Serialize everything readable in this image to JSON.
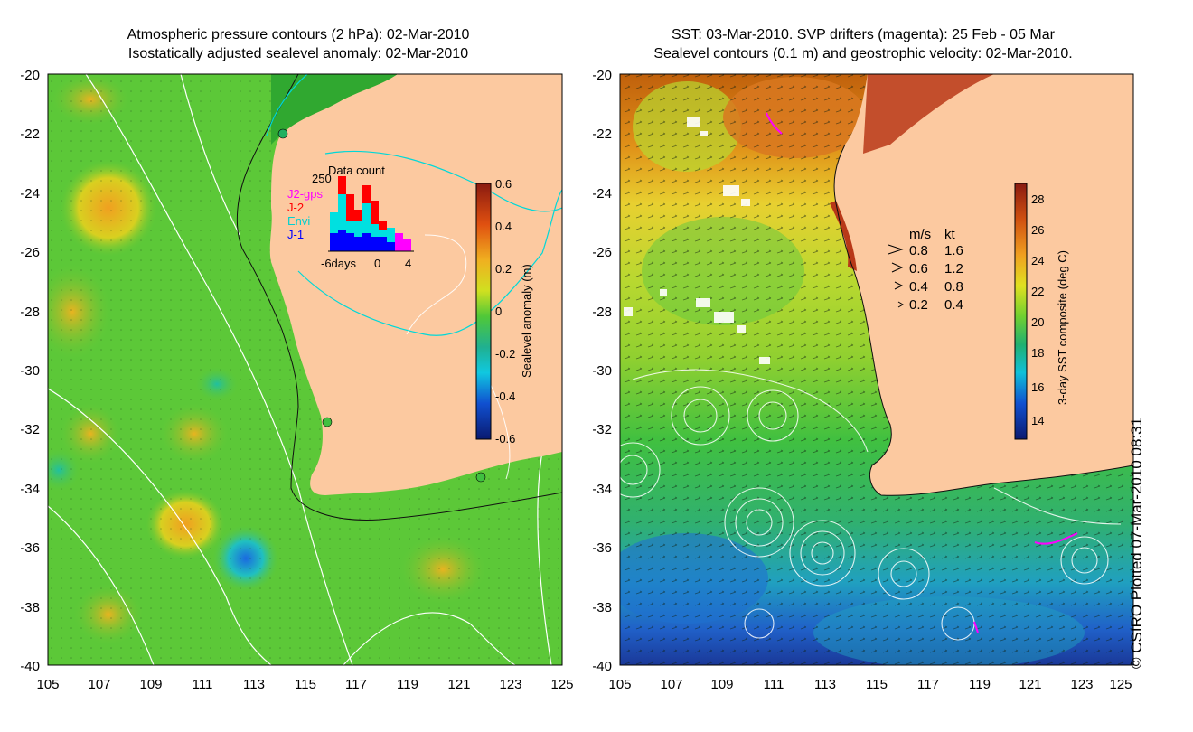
{
  "left_panel": {
    "title_line1": "Atmospheric pressure contours (2 hPa): 02-Mar-2010",
    "title_line2": "Isostatically adjusted sealevel anomaly: 02-Mar-2010",
    "y_ticks": [
      "-20",
      "-22",
      "-24",
      "-26",
      "-28",
      "-30",
      "-32",
      "-34",
      "-36",
      "-38",
      "-40"
    ],
    "x_ticks": [
      "105",
      "107",
      "109",
      "111",
      "113",
      "115",
      "117",
      "119",
      "121",
      "123",
      "125"
    ],
    "colorbar": {
      "label": "Sealevel anomaly (m)",
      "ticks": [
        "0.6",
        "0.4",
        "0.2",
        "0",
        "-0.2",
        "-0.4",
        "-0.6"
      ],
      "range": [
        -0.6,
        0.6
      ]
    },
    "data_count": {
      "title": "Data count",
      "y_max_label": "250",
      "x_labels": [
        "-6days",
        "0",
        "4"
      ],
      "legend": [
        {
          "label": "J2-gps",
          "color": "#ff00ff"
        },
        {
          "label": "J-2",
          "color": "#ff0000"
        },
        {
          "label": "Envi",
          "color": "#00e0e0"
        },
        {
          "label": "J-1",
          "color": "#0000ff"
        }
      ]
    }
  },
  "right_panel": {
    "title_line1": "SST: 03-Mar-2010. SVP drifters (magenta): 25 Feb - 05 Mar",
    "title_line2": "Sealevel contours (0.1 m) and geostrophic velocity: 02-Mar-2010.",
    "y_ticks": [
      "-20",
      "-22",
      "-24",
      "-26",
      "-28",
      "-30",
      "-32",
      "-34",
      "-36",
      "-38",
      "-40"
    ],
    "x_ticks": [
      "105",
      "107",
      "109",
      "111",
      "113",
      "115",
      "117",
      "119",
      "121",
      "123",
      "125"
    ],
    "colorbar": {
      "label": "3-day SST composite (deg C)",
      "ticks": [
        "28",
        "26",
        "24",
        "22",
        "20",
        "18",
        "16",
        "14"
      ],
      "range": [
        13,
        29.5
      ]
    },
    "velocity_legend": {
      "header_ms": "m/s",
      "header_kt": "kt",
      "rows": [
        {
          "ms": "0.8",
          "kt": "1.6"
        },
        {
          "ms": "0.6",
          "kt": "1.2"
        },
        {
          "ms": "0.4",
          "kt": "0.8"
        },
        {
          "ms": "0.2",
          "kt": "0.4"
        }
      ]
    }
  },
  "credit": "© CSIRO Plotted 07-Mar-2010 08:31",
  "colors": {
    "land": "#fcc9a0",
    "ocean_mid": "#5cc838",
    "sst_warm": "#c85a10",
    "sst_cold": "#1a3fa8",
    "contour": "#ffffff",
    "cyan_contour": "#00d8d8"
  }
}
